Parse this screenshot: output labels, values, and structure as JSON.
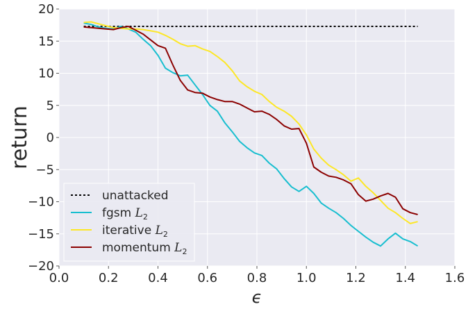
{
  "chart_data": {
    "type": "line",
    "title": "",
    "xlabel": "ϵ",
    "ylabel": "return",
    "xlim": [
      0.0,
      1.6
    ],
    "ylim": [
      -20,
      20
    ],
    "x_ticks": [
      "0.0",
      "0.2",
      "0.4",
      "0.6",
      "0.8",
      "1.0",
      "1.2",
      "1.4",
      "1.6"
    ],
    "y_ticks": [
      "−20",
      "−15",
      "−10",
      "−5",
      "0",
      "5",
      "10",
      "15",
      "20"
    ],
    "grid": true,
    "background": "#eaeaf2",
    "legend_position": "lower-left",
    "series": [
      {
        "name": "unattacked",
        "label_main": "unattacked",
        "label_sub": "",
        "color": "#000000",
        "style": "dotted",
        "x": [
          0.1,
          1.45
        ],
        "y": [
          17.3,
          17.3
        ]
      },
      {
        "name": "fgsm L2",
        "label_main": "fgsm ",
        "label_sub": "L2",
        "color": "#17becf",
        "style": "solid",
        "x": [
          0.1,
          0.13,
          0.16,
          0.19,
          0.22,
          0.25,
          0.28,
          0.31,
          0.34,
          0.37,
          0.4,
          0.43,
          0.46,
          0.49,
          0.52,
          0.55,
          0.58,
          0.61,
          0.64,
          0.67,
          0.7,
          0.73,
          0.76,
          0.79,
          0.82,
          0.85,
          0.88,
          0.91,
          0.94,
          0.97,
          1.0,
          1.03,
          1.06,
          1.09,
          1.12,
          1.15,
          1.18,
          1.21,
          1.24,
          1.27,
          1.3,
          1.33,
          1.36,
          1.39,
          1.42,
          1.45
        ],
        "y": [
          17.8,
          17.6,
          17.2,
          17.0,
          16.9,
          17.3,
          16.9,
          16.4,
          15.3,
          14.3,
          12.8,
          10.8,
          10.1,
          9.6,
          9.7,
          8.2,
          6.7,
          5.0,
          4.1,
          2.3,
          0.9,
          -0.6,
          -1.6,
          -2.4,
          -2.8,
          -4.0,
          -4.9,
          -6.4,
          -7.7,
          -8.4,
          -7.6,
          -8.7,
          -10.2,
          -11.0,
          -11.7,
          -12.6,
          -13.7,
          -14.6,
          -15.5,
          -16.3,
          -16.9,
          -15.8,
          -14.9,
          -15.8,
          -16.2,
          -16.9
        ]
      },
      {
        "name": "iterative L2",
        "label_main": "iterative ",
        "label_sub": "L2",
        "color": "#fde725",
        "style": "solid",
        "x": [
          0.1,
          0.13,
          0.16,
          0.19,
          0.22,
          0.25,
          0.28,
          0.31,
          0.34,
          0.37,
          0.4,
          0.43,
          0.46,
          0.49,
          0.52,
          0.55,
          0.58,
          0.61,
          0.64,
          0.67,
          0.7,
          0.73,
          0.76,
          0.79,
          0.82,
          0.85,
          0.88,
          0.91,
          0.94,
          0.97,
          1.0,
          1.03,
          1.06,
          1.09,
          1.12,
          1.15,
          1.18,
          1.21,
          1.24,
          1.27,
          1.3,
          1.33,
          1.36,
          1.39,
          1.42,
          1.45
        ],
        "y": [
          17.9,
          18.0,
          17.7,
          17.4,
          17.1,
          17.0,
          16.9,
          16.9,
          16.8,
          16.6,
          16.4,
          15.9,
          15.3,
          14.6,
          14.2,
          14.3,
          13.8,
          13.4,
          12.6,
          11.7,
          10.4,
          8.8,
          7.9,
          7.2,
          6.7,
          5.6,
          4.7,
          4.1,
          3.3,
          2.1,
          0.4,
          -1.8,
          -3.2,
          -4.3,
          -5.0,
          -5.8,
          -6.8,
          -6.3,
          -7.6,
          -8.6,
          -9.8,
          -11.0,
          -11.7,
          -12.6,
          -13.4,
          -13.1
        ]
      },
      {
        "name": "momentum L2",
        "label_main": "momentum ",
        "label_sub": "L2",
        "color": "#8b0000",
        "style": "solid",
        "x": [
          0.1,
          0.13,
          0.16,
          0.19,
          0.22,
          0.25,
          0.28,
          0.31,
          0.34,
          0.37,
          0.4,
          0.43,
          0.46,
          0.49,
          0.52,
          0.55,
          0.58,
          0.61,
          0.64,
          0.67,
          0.7,
          0.73,
          0.76,
          0.79,
          0.82,
          0.85,
          0.88,
          0.91,
          0.94,
          0.97,
          1.0,
          1.03,
          1.06,
          1.09,
          1.12,
          1.15,
          1.18,
          1.21,
          1.24,
          1.27,
          1.3,
          1.33,
          1.36,
          1.39,
          1.42,
          1.45
        ],
        "y": [
          17.2,
          17.1,
          17.0,
          16.9,
          16.8,
          17.1,
          17.3,
          16.7,
          16.1,
          15.2,
          14.3,
          13.9,
          11.3,
          8.9,
          7.4,
          7.0,
          6.9,
          6.3,
          5.9,
          5.6,
          5.6,
          5.2,
          4.6,
          4.0,
          4.1,
          3.6,
          2.8,
          1.8,
          1.3,
          1.4,
          -0.9,
          -4.6,
          -5.4,
          -6.0,
          -6.2,
          -6.6,
          -7.2,
          -8.9,
          -9.9,
          -9.6,
          -9.1,
          -8.7,
          -9.3,
          -11.1,
          -11.7,
          -12.0
        ]
      }
    ]
  }
}
